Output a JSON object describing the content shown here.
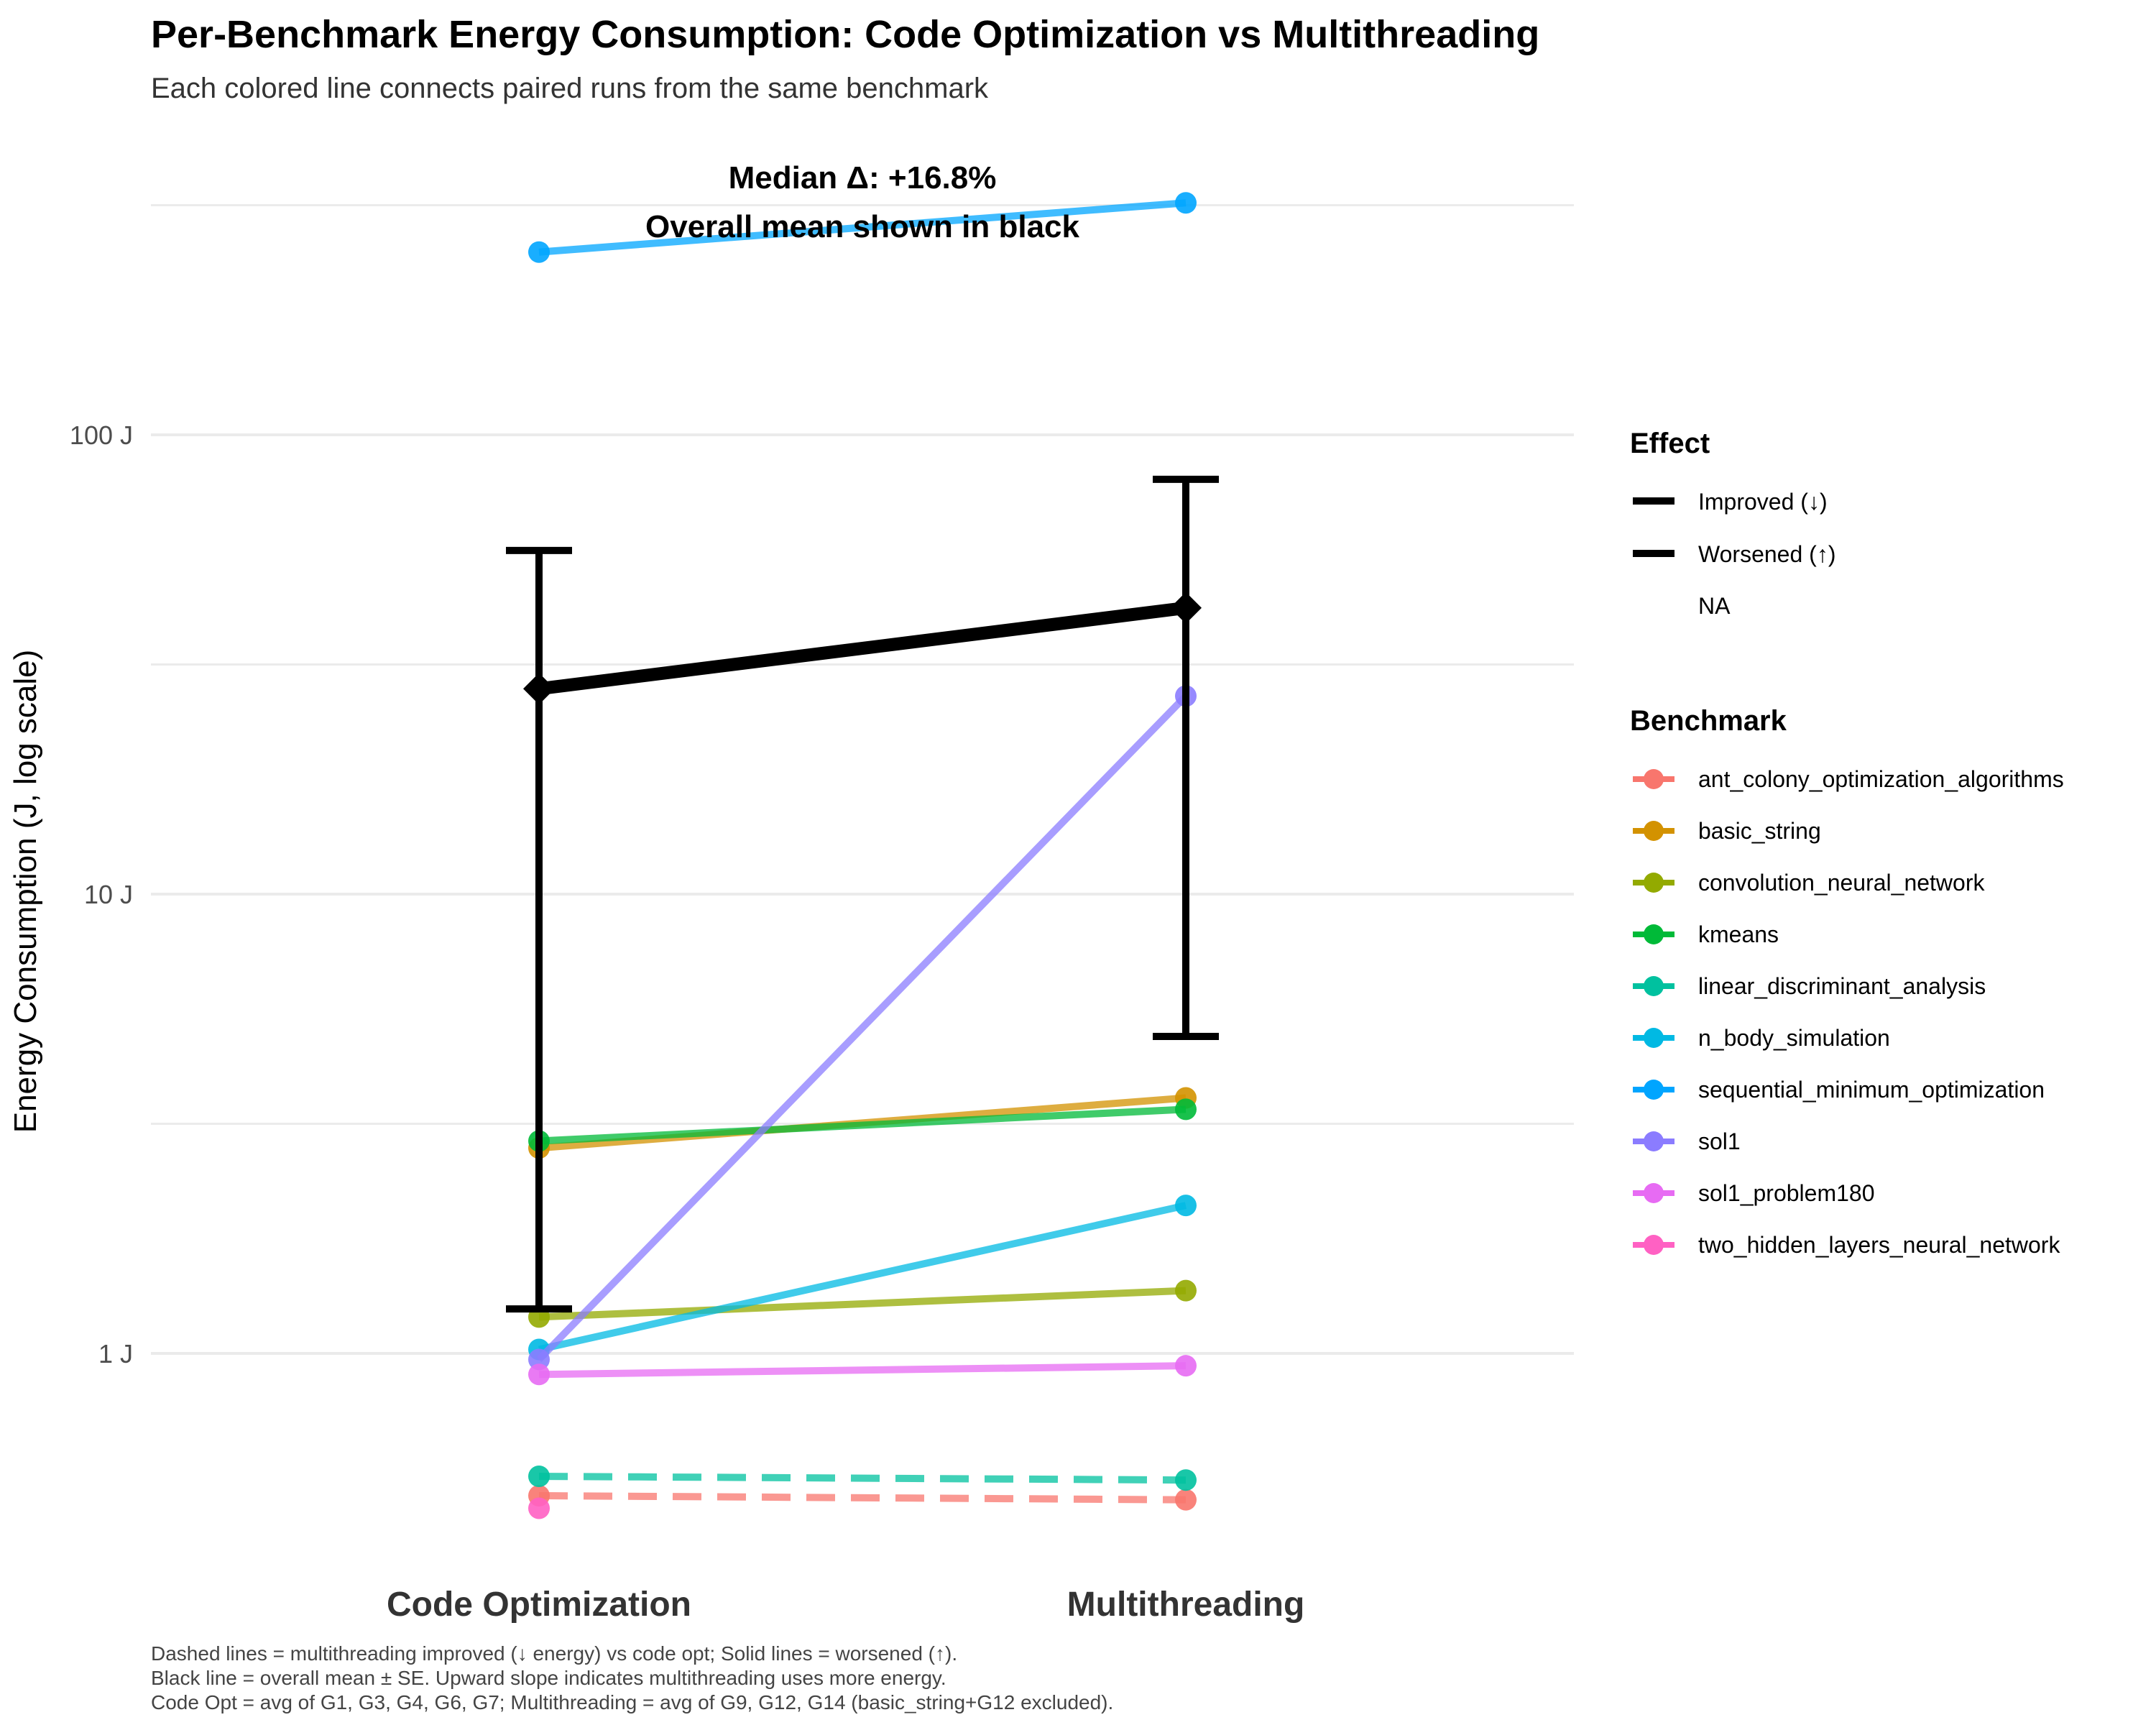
{
  "chart_data": {
    "type": "line",
    "title": "Per-Benchmark Energy Consumption: Code Optimization vs Multithreading",
    "subtitle": "Each colored line connects paired runs from the same benchmark",
    "ylabel": "Energy Consumption (J, log scale)",
    "y_scale": "log",
    "ylim": [
      0.4,
      400
    ],
    "y_ticks": [
      1,
      10,
      100
    ],
    "y_tick_labels": [
      "1 J",
      "10 J",
      "100 J"
    ],
    "grid": true,
    "categories": [
      "Code Optimization",
      "Multithreading"
    ],
    "annotations": [
      "Median Δ: +16.8%",
      "Overall mean shown in black"
    ],
    "series": [
      {
        "name": "ant_colony_optimization_algorithms",
        "values": [
          0.49,
          0.48
        ],
        "color": "#F8766D",
        "linetype": "dashed"
      },
      {
        "name": "basic_string",
        "values": [
          2.8,
          3.6
        ],
        "color": "#D39200",
        "linetype": "solid"
      },
      {
        "name": "convolution_neural_network",
        "values": [
          1.2,
          1.37
        ],
        "color": "#93AA00",
        "linetype": "solid"
      },
      {
        "name": "kmeans",
        "values": [
          2.9,
          3.4
        ],
        "color": "#00BA38",
        "linetype": "solid"
      },
      {
        "name": "linear_discriminant_analysis",
        "values": [
          0.54,
          0.53
        ],
        "color": "#00C19F",
        "linetype": "dashed"
      },
      {
        "name": "n_body_simulation",
        "values": [
          1.02,
          2.1
        ],
        "color": "#00B9E3",
        "linetype": "solid"
      },
      {
        "name": "sequential_minimum_optimization",
        "values": [
          250,
          320
        ],
        "color": "#00A5FF",
        "linetype": "solid"
      },
      {
        "name": "sol1",
        "values": [
          0.97,
          27
        ],
        "color": "#8B7CFF",
        "linetype": "solid"
      },
      {
        "name": "sol1_problem180",
        "values": [
          0.9,
          0.94
        ],
        "color": "#E76BF3",
        "linetype": "solid"
      },
      {
        "name": "two_hidden_layers_neural_network",
        "values": [
          0.46,
          null
        ],
        "color": "#FF61C3",
        "linetype": "none"
      }
    ],
    "overall_mean": {
      "values": [
        28,
        42
      ],
      "se_low": [
        1.25,
        4.9
      ],
      "se_high": [
        56,
        80
      ],
      "color": "#000000"
    }
  },
  "legend": {
    "effect_title": "Effect",
    "effect_items": [
      "Improved (↓)",
      "Worsened (↑)",
      "NA"
    ],
    "benchmark_title": "Benchmark"
  },
  "caption": {
    "line1": "Dashed lines = multithreading improved (↓ energy) vs code opt; Solid lines = worsened (↑).",
    "line2": "Black line = overall mean ± SE. Upward slope indicates multithreading uses more energy.",
    "line3": "Code Opt = avg of G1, G3, G4, G6, G7; Multithreading = avg of G9, G12, G14 (basic_string+G12 excluded)."
  }
}
